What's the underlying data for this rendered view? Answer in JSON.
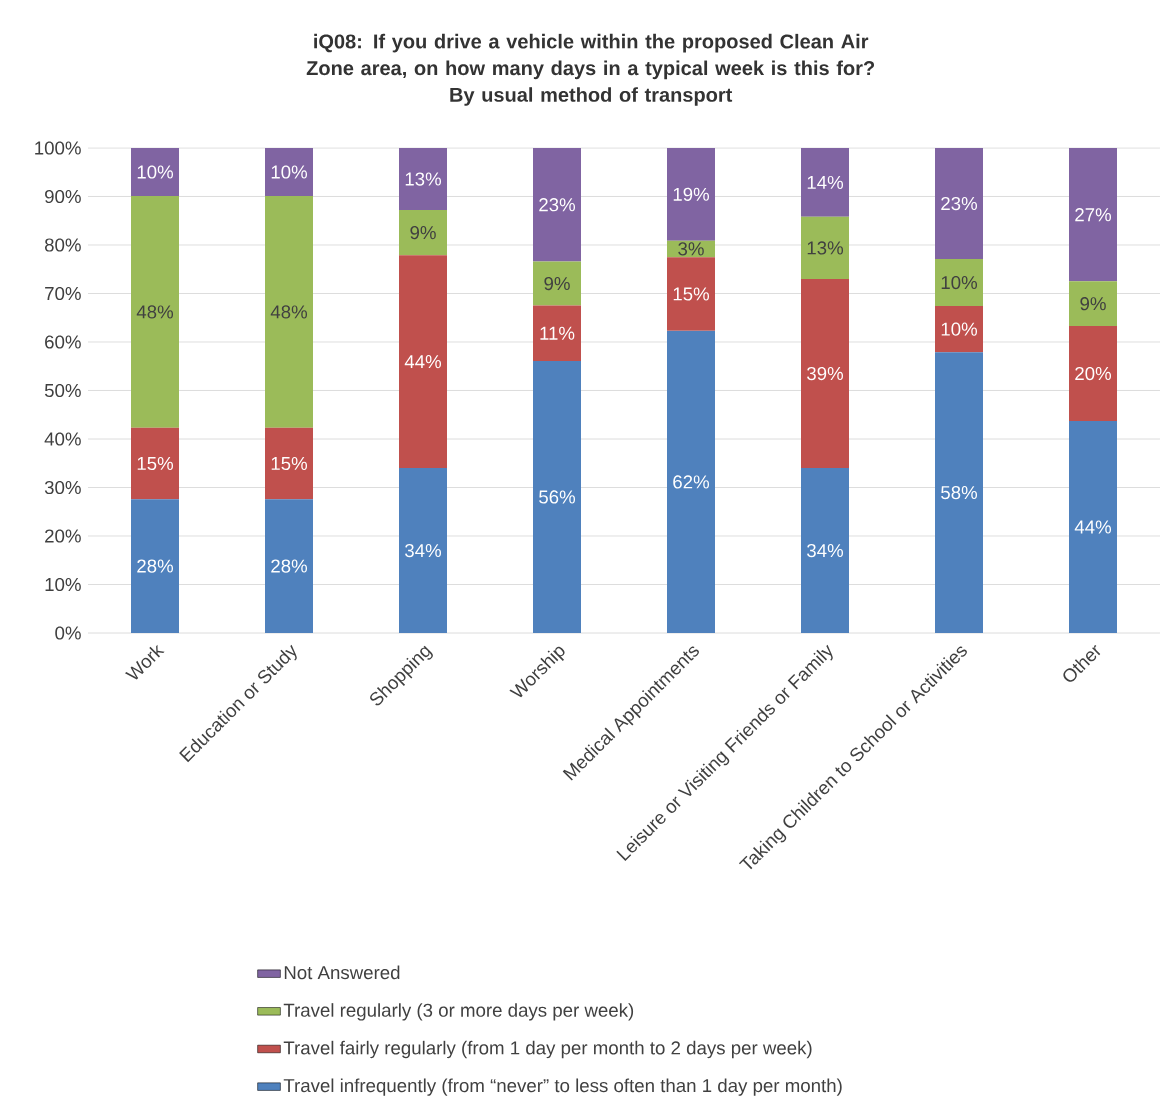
{
  "chart_data": {
    "type": "bar",
    "stacked": true,
    "title": "iQ08: If you drive a vehicle within the proposed Clean Air Zone area, on how many days in a typical week is this for?",
    "subtitle": "By usual method of transport",
    "categories": [
      "Work",
      "Education or Study",
      "Shopping",
      "Worship",
      "Medical Appointments",
      "Leisure or Visiting Friends or Family",
      "Taking Children to School or Activities",
      "Other"
    ],
    "series": [
      {
        "name": "Travel infrequently (from “never” to less often than 1 day per month)",
        "color": "#4f81bd",
        "values": [
          27.6,
          27.6,
          34.0,
          56.1,
          62.3,
          34.0,
          57.9,
          43.7
        ],
        "value_labels": [
          "28%",
          "28%",
          "34%",
          "56%",
          "62%",
          "34%",
          "58%",
          "44%"
        ]
      },
      {
        "name": "Travel fairly regularly (from 1 day per month to 2 days per week)",
        "color": "#c0504d",
        "values": [
          14.7,
          14.7,
          43.9,
          11.4,
          15.2,
          39.0,
          9.5,
          19.6
        ],
        "value_labels": [
          "15%",
          "15%",
          "44%",
          "11%",
          "15%",
          "39%",
          "10%",
          "20%"
        ]
      },
      {
        "name": "Travel regularly (3 or more days per week)",
        "color": "#9bbb59",
        "values": [
          47.8,
          47.8,
          9.3,
          9.1,
          3.4,
          12.8,
          9.7,
          9.2
        ],
        "value_labels": [
          "48%",
          "48%",
          "9%",
          "9%",
          "3%",
          "13%",
          "10%",
          "9%"
        ]
      },
      {
        "name": "Not Answered",
        "color": "#8064a2",
        "values": [
          9.9,
          9.9,
          12.8,
          23.4,
          19.1,
          14.2,
          22.9,
          27.5
        ],
        "value_labels": [
          "10%",
          "10%",
          "13%",
          "23%",
          "19%",
          "14%",
          "23%",
          "27%"
        ]
      }
    ],
    "ylim": [
      0,
      100
    ],
    "yticks": [
      {
        "value": 0,
        "label": "0%"
      },
      {
        "value": 10,
        "label": "10%"
      },
      {
        "value": 20,
        "label": "20%"
      },
      {
        "value": 30,
        "label": "30%"
      },
      {
        "value": 40,
        "label": "40%"
      },
      {
        "value": 50,
        "label": "50%"
      },
      {
        "value": 60,
        "label": "60%"
      },
      {
        "value": 70,
        "label": "70%"
      },
      {
        "value": 80,
        "label": "80%"
      },
      {
        "value": 90,
        "label": "90%"
      },
      {
        "value": 100,
        "label": "100%"
      }
    ],
    "grid": "y",
    "legend": "bottom"
  }
}
